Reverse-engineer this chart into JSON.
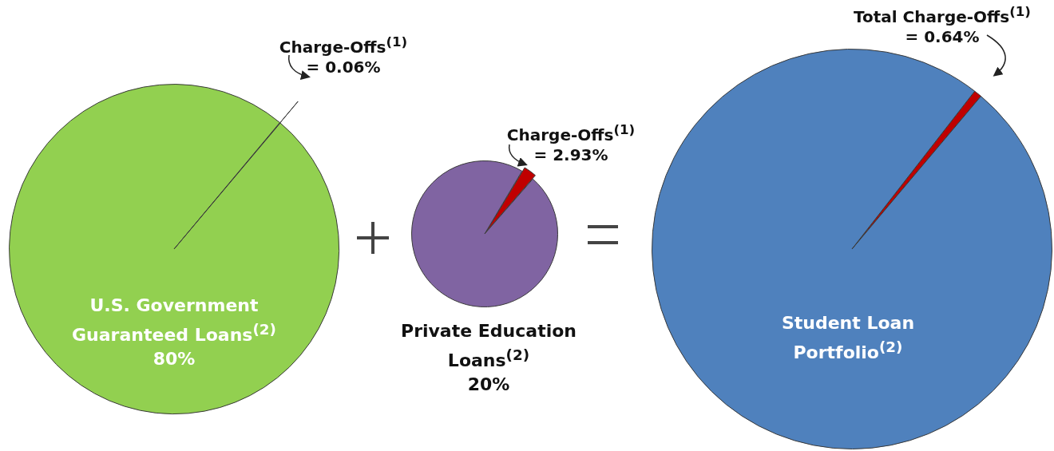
{
  "chart_data": [
    {
      "type": "pie",
      "categories": [
        "Charge-Offs$^{(1)}$",
        null
      ],
      "values": [
        0.06,
        99.94
      ],
      "colors": [
        "#c00000",
        "#92d050"
      ],
      "value_labels": [
        "= 0.06%",
        null
      ],
      "annotations": [
        "U.S. Government Guaranteed Loans$^{(2)}$",
        "80%"
      ]
    },
    {
      "type": "pie",
      "categories": [
        "Charge-Offs$^{(1)}$",
        null
      ],
      "values": [
        2.93,
        97.07
      ],
      "colors": [
        "#c00000",
        "#8064a2"
      ],
      "value_labels": [
        "= 2.93%",
        null
      ],
      "annotations": [
        "Private Education Loans$^{(2)}$",
        "20%"
      ]
    },
    {
      "type": "pie",
      "categories": [
        "Total Charge-Offs$^{(1)}$",
        null
      ],
      "values": [
        0.64,
        99.36
      ],
      "colors": [
        "#c00000",
        "#4f81bd"
      ],
      "value_labels": [
        "= 0.64%",
        null
      ],
      "annotations": [
        "Student Loan Portfolio$^{(2)}$"
      ]
    }
  ]
}
